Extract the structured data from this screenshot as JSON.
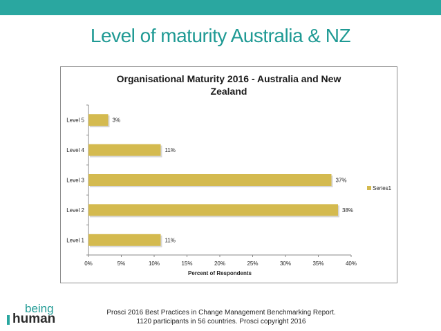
{
  "slide": {
    "title": "Level of maturity Australia & NZ",
    "footer_line1": "Prosci 2016 Best Practices in Change Management Benchmarking Report.",
    "footer_line2": "1120 participants in 56 countries.  Prosci copyright 2016"
  },
  "logo": {
    "word1": "being",
    "word2": "human"
  },
  "colors": {
    "bar": "#d4ba4f",
    "accent": "#2aa7a0",
    "title": "#1f9a94"
  },
  "chart_data": {
    "type": "bar",
    "orientation": "horizontal",
    "title": "Organisational Maturity 2016 - Australia and New Zealand",
    "title_lines": [
      "Organisational Maturity 2016 - Australia and New",
      "Zealand"
    ],
    "xlabel": "Percent of Respondents",
    "ylabel": "",
    "categories": [
      "Level 1",
      "Level 2",
      "Level 3",
      "Level 4",
      "Level 5"
    ],
    "series": [
      {
        "name": "Series1",
        "values": [
          11,
          38,
          37,
          11,
          3
        ]
      }
    ],
    "data_labels": [
      "11%",
      "38%",
      "37%",
      "11%",
      "3%"
    ],
    "xlim": [
      0,
      40
    ],
    "xticks": [
      "0%",
      "5%",
      "10%",
      "15%",
      "20%",
      "25%",
      "30%",
      "35%",
      "40%"
    ],
    "grid": false,
    "legend_position": "right"
  }
}
